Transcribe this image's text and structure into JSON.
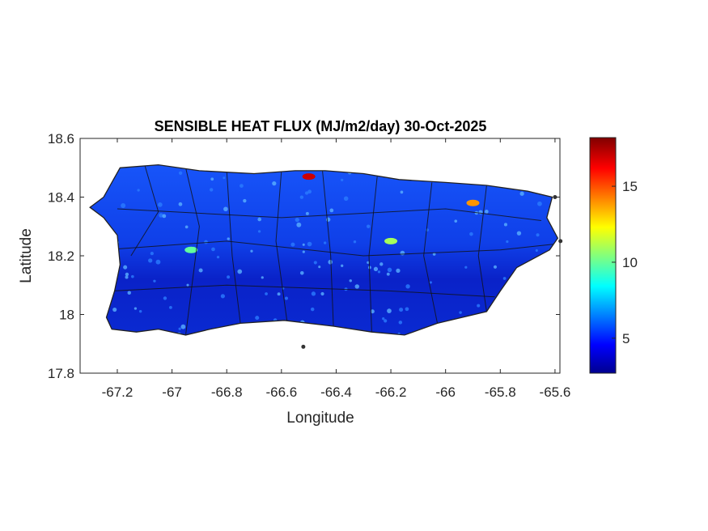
{
  "chart_data": {
    "type": "heatmap",
    "title": "SENSIBLE HEAT FLUX (MJ/m2/day) 30-Oct-2025",
    "xlabel": "Longitude",
    "ylabel": "Latitude",
    "xlim": [
      -67.336,
      -65.582
    ],
    "ylim": [
      17.8,
      18.6
    ],
    "xticks": [
      -67.2,
      -67,
      -66.8,
      -66.6,
      -66.4,
      -66.2,
      -66,
      -65.8,
      -65.6
    ],
    "xtick_labels": [
      "-67.2",
      "-67",
      "-66.8",
      "-66.6",
      "-66.4",
      "-66.2",
      "-66",
      "-65.8",
      "-65.6"
    ],
    "yticks": [
      17.8,
      18,
      18.2,
      18.4,
      18.6
    ],
    "ytick_labels": [
      "17.8",
      "18",
      "18.2",
      "18.4",
      "18.6"
    ],
    "colorbar": {
      "colormap": "jet",
      "range": [
        2.7,
        18.2
      ],
      "ticks": [
        5,
        10,
        15
      ],
      "tick_labels": [
        "5",
        "10",
        "15"
      ]
    },
    "typical_value_range": [
      3,
      7
    ],
    "hotspots": [
      {
        "lon": -66.5,
        "lat": 18.47,
        "value": 17
      },
      {
        "lon": -65.9,
        "lat": 18.38,
        "value": 14
      },
      {
        "lon": -66.2,
        "lat": 18.25,
        "value": 11
      },
      {
        "lon": -66.93,
        "lat": 18.22,
        "value": 10
      }
    ]
  }
}
